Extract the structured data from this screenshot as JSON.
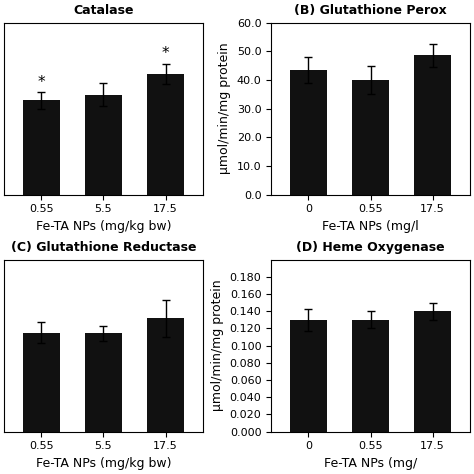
{
  "chart_data": [
    {
      "type": "bar",
      "title": "Catalase",
      "categories": [
        "0.55",
        "5.5",
        "17.5"
      ],
      "values": [
        41.0,
        43.5,
        52.5
      ],
      "errors": [
        3.5,
        5.0,
        4.5
      ],
      "color": "#111111",
      "xlabel": "Fe-TA NPs (mg/kg bw)",
      "ylim": [
        0,
        75
      ],
      "tick_labels": "x",
      "annotations": [
        {
          "category": "0.55",
          "text": "*"
        },
        {
          "category": "17.5",
          "text": "*"
        }
      ]
    },
    {
      "type": "bar",
      "title": "(B) Glutathione Perox",
      "categories": [
        "0",
        "0.55",
        "17.5"
      ],
      "values": [
        43.5,
        40.0,
        48.5
      ],
      "errors": [
        4.5,
        5.0,
        4.0
      ],
      "color": "#111111",
      "xlabel": "Fe-TA NPs (mg/l",
      "ylabel": "μmol/min/mg protein",
      "ylim": [
        0,
        60
      ],
      "yticks": [
        {
          "value": 0,
          "label": "0.0"
        },
        {
          "value": 10,
          "label": "10.0"
        },
        {
          "value": 20,
          "label": "20.0"
        },
        {
          "value": 30,
          "label": "30.0"
        },
        {
          "value": 40,
          "label": "40.0"
        },
        {
          "value": 50,
          "label": "50.0"
        },
        {
          "value": 60,
          "label": "60.0"
        }
      ]
    },
    {
      "type": "bar",
      "title": "(C) Glutathione Reductase",
      "categories": [
        "0.55",
        "5.5",
        "17.5"
      ],
      "values": [
        0.138,
        0.137,
        0.158
      ],
      "errors": [
        0.015,
        0.01,
        0.026
      ],
      "color": "#111111",
      "xlabel": "Fe-TA NPs (mg/kg bw)",
      "ylim": [
        0,
        0.24
      ],
      "tick_labels": "x"
    },
    {
      "type": "bar",
      "title": "(D) Heme Oxygenase",
      "categories": [
        "0",
        "0.55",
        "17.5"
      ],
      "values": [
        0.13,
        0.13,
        0.14
      ],
      "errors": [
        0.013,
        0.01,
        0.01
      ],
      "color": "#111111",
      "xlabel": "Fe-TA NPs (mg/",
      "ylabel": "μmol/min/mg protein",
      "ylim": [
        0,
        0.2
      ],
      "yticks": [
        {
          "value": 0,
          "label": "0.000"
        },
        {
          "value": 0.02,
          "label": "0.020"
        },
        {
          "value": 0.04,
          "label": "0.040"
        },
        {
          "value": 0.06,
          "label": "0.060"
        },
        {
          "value": 0.08,
          "label": "0.080"
        },
        {
          "value": 0.1,
          "label": "0.100"
        },
        {
          "value": 0.12,
          "label": "0.120"
        },
        {
          "value": 0.14,
          "label": "0.140"
        },
        {
          "value": 0.16,
          "label": "0.160"
        },
        {
          "value": 0.18,
          "label": "0.180"
        }
      ]
    }
  ]
}
